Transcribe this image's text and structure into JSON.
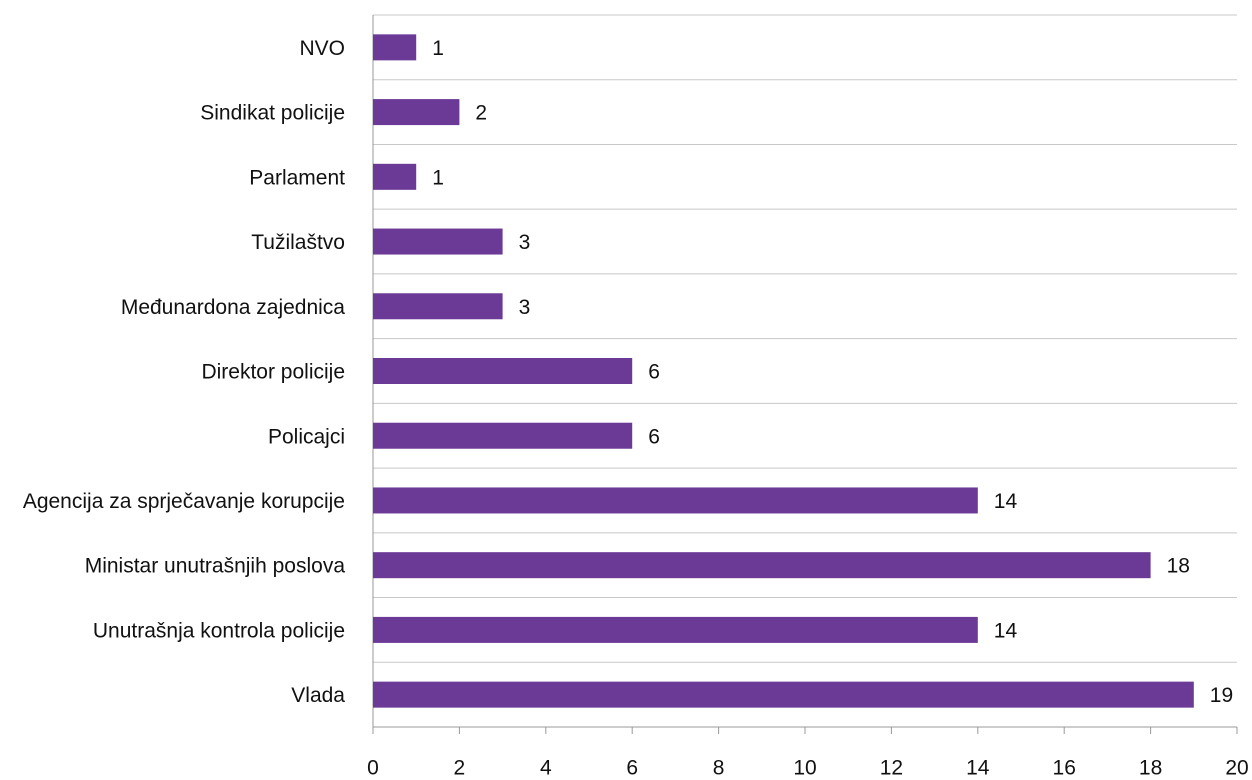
{
  "chart_data": {
    "type": "bar",
    "orientation": "horizontal",
    "categories": [
      "NVO",
      "Sindikat policije",
      "Parlament",
      "Tužilaštvo",
      "Međunardona zajednica",
      "Direktor policije",
      "Policajci",
      "Agencija za sprječavanje korupcije",
      "Ministar unutrašnjih poslova",
      "Unutrašnja kontrola policije",
      "Vlada"
    ],
    "values": [
      1,
      2,
      1,
      3,
      3,
      6,
      6,
      14,
      18,
      14,
      19
    ],
    "color": "#6b3996",
    "xlim": [
      0,
      20
    ],
    "xticks": [
      0,
      2,
      4,
      6,
      8,
      10,
      12,
      14,
      16,
      18,
      20
    ],
    "grid": true
  }
}
